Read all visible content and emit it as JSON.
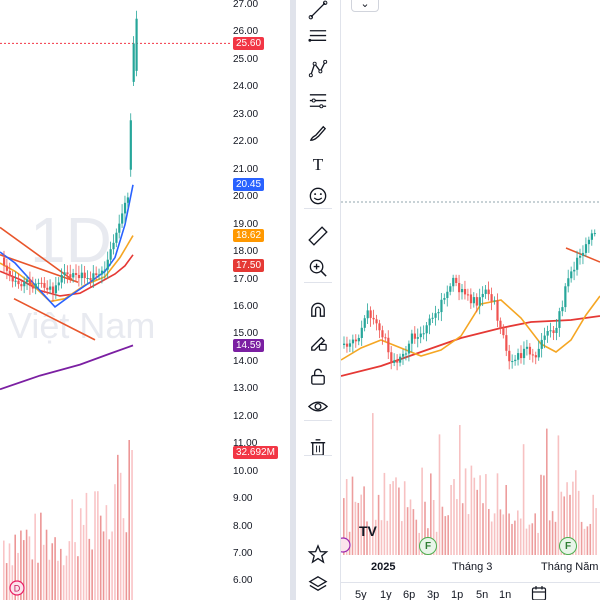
{
  "left_panel": {
    "watermark_interval": "1D",
    "watermark_text": "i Việt Nam",
    "price_axis": [
      "27.00",
      "26.00",
      "25.00",
      "24.00",
      "23.00",
      "22.00",
      "21.00",
      "20.00",
      "19.00",
      "18.00",
      "17.00",
      "16.00",
      "15.00",
      "14.00",
      "13.00",
      "12.00",
      "11.00",
      "10.00",
      "9.00",
      "8.00",
      "7.00",
      "6.00"
    ],
    "price_tags": [
      {
        "label": "25.60",
        "value": 25.6,
        "color": "#f23645",
        "name": "last-price-tag"
      },
      {
        "label": "20.45",
        "value": 20.45,
        "color": "#2962ff",
        "name": "ma-blue-tag"
      },
      {
        "label": "18.62",
        "value": 18.62,
        "color": "#ff9800",
        "name": "ma-orange-tag"
      },
      {
        "label": "17.50",
        "value": 17.5,
        "color": "#e53935",
        "name": "ma-red-tag"
      },
      {
        "label": "14.59",
        "value": 14.59,
        "color": "#7b1fa2",
        "name": "ma-purple-tag"
      },
      {
        "label": "32.692M",
        "value": 10.7,
        "color": "#f23645",
        "name": "volume-tag"
      }
    ],
    "event_badge": "D"
  },
  "toolbar": {
    "tools": [
      {
        "name": "trend-line-tool-icon"
      },
      {
        "name": "fib-retracement-tool-icon"
      },
      {
        "name": "pattern-tool-icon"
      },
      {
        "name": "prediction-tool-icon"
      },
      {
        "name": "brush-tool-icon"
      },
      {
        "name": "text-tool-icon",
        "glyph": "T"
      },
      {
        "name": "emoji-tool-icon"
      },
      {
        "name": "ruler-tool-icon"
      },
      {
        "name": "zoom-in-tool-icon"
      },
      {
        "name": "magnet-tool-icon"
      },
      {
        "name": "lock-drawing-tool-icon"
      },
      {
        "name": "lock-tool-icon"
      },
      {
        "name": "eye-tool-icon"
      },
      {
        "name": "trash-tool-icon"
      },
      {
        "name": "star-icon"
      },
      {
        "name": "layers-icon"
      }
    ]
  },
  "right_panel": {
    "top_button": "⌄",
    "x_axis": [
      {
        "label": "2025",
        "bold": true
      },
      {
        "label": "Tháng 3",
        "bold": false
      },
      {
        "label": "Tháng Năm",
        "bold": false
      }
    ],
    "event_badges": [
      "F",
      "F"
    ],
    "logo_text": "TV",
    "range_buttons": [
      "5y",
      "1y",
      "6p",
      "3p",
      "1p",
      "5n",
      "1n"
    ]
  },
  "colors": {
    "up": "#26a69a",
    "down": "#ef5350",
    "ma_blue": "#2962ff",
    "ma_orange": "#f5a623",
    "ma_red": "#e53935",
    "ma_purple": "#7b1fa2"
  }
}
